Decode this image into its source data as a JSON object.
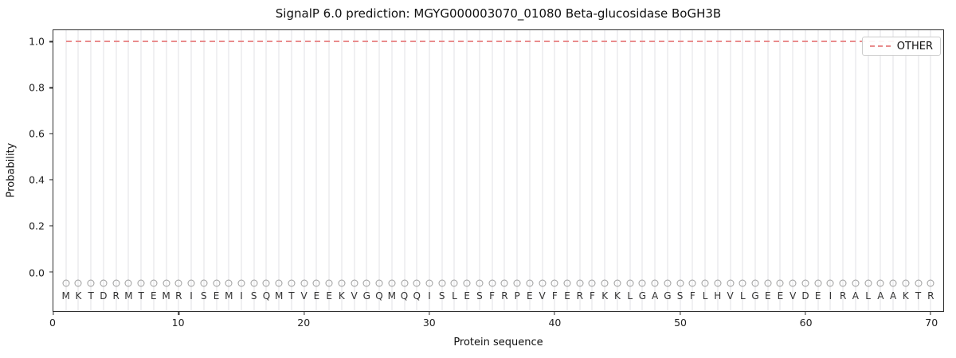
{
  "chart_data": {
    "type": "line",
    "title": "SignalP 6.0 prediction: MGYG000003070_01080 Beta-glucosidase BoGH3B",
    "xlabel": "Protein sequence",
    "ylabel": "Probability",
    "xlim": [
      0,
      71
    ],
    "ylim": [
      -0.17,
      1.05
    ],
    "xticks": [
      0,
      10,
      20,
      30,
      40,
      50,
      60,
      70
    ],
    "yticks": [
      "0.0",
      "0.2",
      "0.4",
      "0.6",
      "0.8",
      "1.0"
    ],
    "ytick_values": [
      0.0,
      0.2,
      0.4,
      0.6,
      0.8,
      1.0
    ],
    "grid": "vertical line at every residue position",
    "sequence": "MKTDRMTEMRISEMISQMTVEEKVGQMQQISLESFRPEVFERFKKLGAGSFLHVLGEEVDEIRALAAKTR",
    "marker_y": -0.05,
    "letter_y": -0.105,
    "series": [
      {
        "name": "OTHER",
        "y": 1.0,
        "x_start": 1,
        "x_end": 70,
        "linestyle": "dashed",
        "color": "#e98c8d"
      }
    ],
    "legend": {
      "position": "upper right",
      "entries": [
        {
          "label": "OTHER",
          "color": "#e98c8d",
          "style": "dashed"
        }
      ]
    },
    "colors": {
      "other_line": "#e98c8d",
      "gridline": "#f0f0f2",
      "marker_outline": "#9d9d9d",
      "letter_text": "#333333",
      "axis": "#2e2e2e"
    }
  }
}
